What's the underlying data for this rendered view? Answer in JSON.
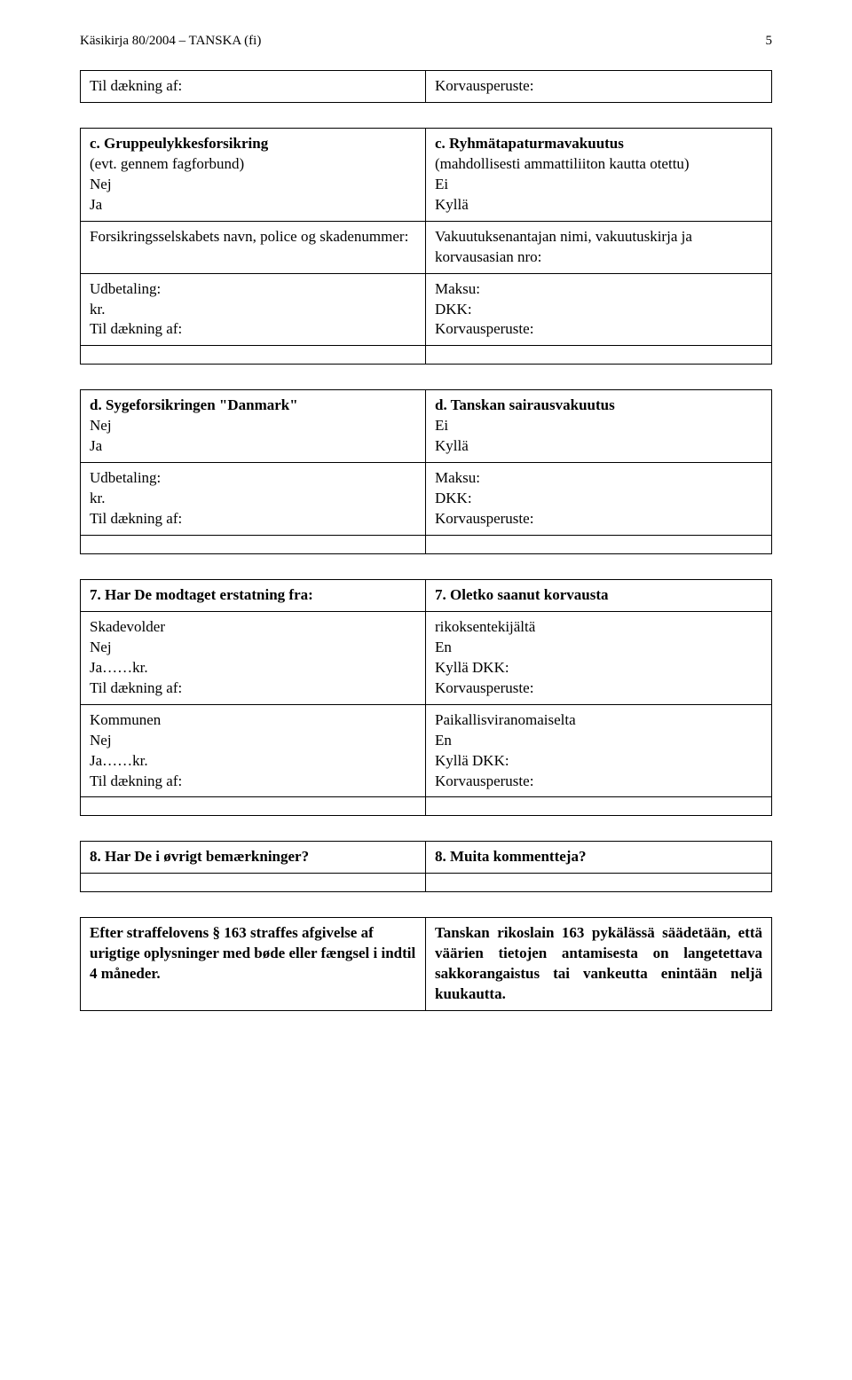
{
  "header": {
    "left": "Käsikirja 80/2004 – TANSKA (fi)",
    "page_number": "5"
  },
  "row_top": {
    "left": "Til dækning af:",
    "right": "Korvausperuste:"
  },
  "section_c": {
    "left": {
      "title": "c. Gruppeulykkesforsikring",
      "l1": "(evt. gennem fagforbund)",
      "l2": "Nej",
      "l3": "Ja"
    },
    "right": {
      "title": "c. Ryhmätapaturmavakuutus",
      "l1": "(mahdollisesti ammattiliiton kautta otettu)",
      "l2": "Ei",
      "l3": "Kyllä"
    },
    "row2": {
      "left": "Forsikringsselskabets navn, police og skadenummer:",
      "right": "Vakuutuksenantajan nimi, vakuutuskirja ja korvausasian nro:"
    },
    "row3": {
      "left": {
        "l1": "Udbetaling:",
        "l2": "kr.",
        "l3": "Til dækning af:"
      },
      "right": {
        "l1": "Maksu:",
        "l2": "DKK:",
        "l3": "Korvausperuste:"
      }
    }
  },
  "section_d": {
    "left": {
      "title": "d. Sygeforsikringen \"Danmark\"",
      "l1": "Nej",
      "l2": "Ja"
    },
    "right": {
      "title": "d. Tanskan sairausvakuutus",
      "l1": "Ei",
      "l2": "Kyllä"
    },
    "row2": {
      "left": {
        "l1": "Udbetaling:",
        "l2": "kr.",
        "l3": "Til dækning af:"
      },
      "right": {
        "l1": "Maksu:",
        "l2": "DKK:",
        "l3": "Korvausperuste:"
      }
    }
  },
  "section_7": {
    "q": {
      "left": "7. Har De modtaget erstatning fra:",
      "right": "7. Oletko saanut korvausta"
    },
    "row1": {
      "left": {
        "l1": "Skadevolder",
        "l2": "Nej",
        "l3": "Ja……kr.",
        "l4": "Til dækning af:"
      },
      "right": {
        "l1": "rikoksentekijältä",
        "l2": "En",
        "l3": "Kyllä   DKK:",
        "l4": "Korvausperuste:"
      }
    },
    "row2": {
      "left": {
        "l1": "Kommunen",
        "l2": "Nej",
        "l3": "Ja……kr.",
        "l4": "Til dækning af:"
      },
      "right": {
        "l1": "Paikallisviranomaiselta",
        "l2": "En",
        "l3": "Kyllä   DKK:",
        "l4": "Korvausperuste:"
      }
    }
  },
  "section_8": {
    "q": {
      "left": "8. Har De i øvrigt bemærkninger?",
      "right": "8. Muita kommentteja?"
    }
  },
  "footer": {
    "left": "Efter straffelovens § 163 straffes afgivelse af urigtige oplysninger med bøde eller fængsel i indtil 4 måneder.",
    "right": "Tanskan rikoslain 163 pykälässä säädetään, että väärien tietojen antamisesta on langetettava sakkorangaistus tai vankeutta enintään neljä kuukautta."
  }
}
